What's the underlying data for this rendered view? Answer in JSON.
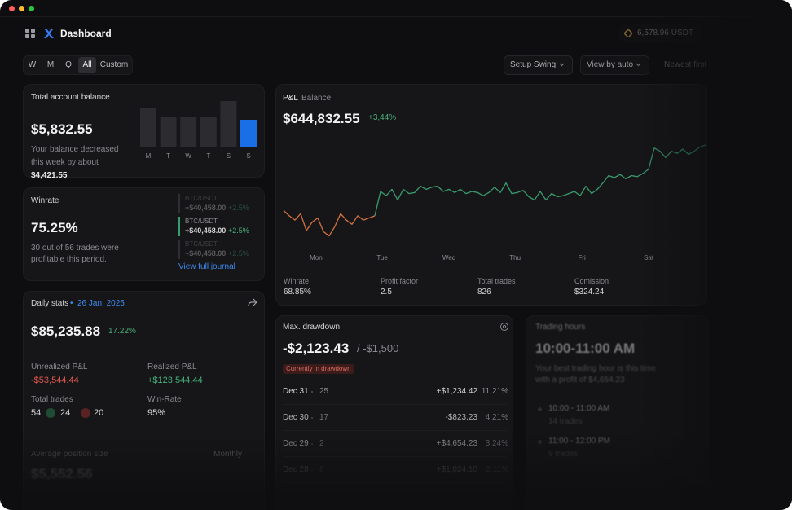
{
  "window": {
    "title": "Dashboard",
    "balance": "6,578.96 USDT"
  },
  "filters": {
    "periods": [
      "W",
      "M",
      "Q",
      "All",
      "Custom"
    ],
    "active": "All",
    "setup": "Setup Swing",
    "view": "View by auto",
    "sort": "Newest first"
  },
  "balance_card": {
    "title": "Total account balance",
    "amount": "$5,832.55",
    "note": "Your balance decreased this week by about",
    "change": "$4,421.55"
  },
  "winrate_card": {
    "title": "Winrate",
    "value": "75.25%",
    "note": "30 out of 56 trades were profitable this period.",
    "trades": [
      {
        "pair": "BTC/USDT",
        "pnl": "+$40,458.00",
        "pct": "+2.5%"
      },
      {
        "pair": "BTC/USDT",
        "pnl": "+$40,458.00",
        "pct": "+2.5%"
      },
      {
        "pair": "BTC/USDT",
        "pnl": "+$40,458.00",
        "pct": "+2.5%"
      }
    ],
    "link": "View full journal"
  },
  "daily": {
    "title": "Daily stats",
    "dot": "•",
    "date": "26 Jan, 2025",
    "amount": "$85,235.88",
    "change": "17.22%",
    "unrealized_label": "Unrealized P&L",
    "unrealized": "-$53,544.44",
    "realized_label": "Realized P&L",
    "realized": "+$123,544.44",
    "trades_label": "Total trades",
    "trades": "54",
    "wins": "24",
    "losses": "20",
    "winrate_label": "Win-Rate",
    "winrate": "95%",
    "avg_label": "Average position size",
    "avg_period": "Monthly",
    "avg_value": "$5,552.56"
  },
  "pnl_stats": [
    {
      "label": "Winrate",
      "value": "68.85%"
    },
    {
      "label": "Profit factor",
      "value": "2.5"
    },
    {
      "label": "Total trades",
      "value": "826"
    },
    {
      "label": "Comission",
      "value": "$324.24"
    }
  ],
  "drawdown": {
    "title": "Max. drawdown",
    "value": "-$2,123.43",
    "limit": "/ -$1,500",
    "badge": "Currently in drawdown",
    "rows": [
      [
        "Dec 31",
        "25",
        "+$1,234.42",
        "11.21%"
      ],
      [
        "Dec 30",
        "17",
        "-$823.23",
        "4.21%"
      ],
      [
        "Dec 29",
        "2",
        "+$4,654.23",
        "3.24%"
      ],
      [
        "Dec 28",
        "6",
        "+$1,024.10",
        "2.11%"
      ]
    ]
  },
  "hours": {
    "title": "Trading hours",
    "value": "10:00-11:00 AM",
    "note": "Your best trading hour is this time with a profit of $4,654.23",
    "slots": [
      {
        "time": "10:00 - 11:00 AM",
        "trades": "14 trades"
      },
      {
        "time": "11:00 - 12:00 PM",
        "trades": "9 trades"
      }
    ]
  },
  "chart_data": [
    {
      "type": "bar",
      "categories": [
        "M",
        "T",
        "W",
        "T",
        "S",
        "S"
      ],
      "values": [
        48,
        37,
        37,
        37,
        57,
        34
      ],
      "colors": [
        "#2c2c30",
        "#2c2c30",
        "#2c2c30",
        "#2c2c30",
        "#2c2c30",
        "#1a6ee6"
      ]
    },
    {
      "type": "line",
      "tabs": [
        "P&L",
        "Balance"
      ],
      "value": "$644,832.55",
      "change": "+3,44%",
      "xlim": [
        0,
        74
      ],
      "ylim": [
        0,
        100
      ],
      "xticks": [
        {
          "value": 5.7,
          "label": "Mon"
        },
        {
          "value": 17.3,
          "label": "Tue"
        },
        {
          "value": 29,
          "label": "Wed"
        },
        {
          "value": 40.6,
          "label": "Thu"
        },
        {
          "value": 52.3,
          "label": "Fri"
        },
        {
          "value": 64,
          "label": "Sat"
        }
      ],
      "series": [
        {
          "color": "#d4703f",
          "values": [
            32,
            27,
            23,
            29,
            13,
            21,
            25,
            12,
            8,
            17,
            29,
            23,
            19,
            27,
            23,
            25,
            27,
            null,
            null,
            null,
            null,
            null,
            null,
            null,
            null,
            null,
            null,
            null,
            null,
            null,
            null,
            null,
            null,
            null,
            null,
            null,
            null,
            null,
            null,
            null,
            null,
            null,
            null,
            null,
            null,
            null,
            null,
            null,
            null,
            null,
            null,
            null,
            null,
            null,
            null,
            null,
            null,
            null,
            null,
            null,
            null,
            null,
            null,
            null,
            null,
            null,
            null,
            null,
            null,
            null,
            null,
            null,
            null,
            null,
            null
          ]
        },
        {
          "color": "#3a9b6d",
          "values": [
            null,
            null,
            null,
            null,
            null,
            null,
            null,
            null,
            null,
            null,
            null,
            null,
            null,
            null,
            null,
            null,
            27,
            50,
            46,
            52,
            42,
            52,
            48,
            49,
            55,
            52,
            54,
            55,
            50,
            52,
            49,
            52,
            48,
            50,
            49,
            46,
            49,
            54,
            49,
            58,
            48,
            49,
            51,
            45,
            42,
            50,
            42,
            48,
            45,
            46,
            48,
            50,
            46,
            55,
            48,
            52,
            58,
            65,
            63,
            66,
            62,
            65,
            64,
            67,
            71,
            91,
            88,
            82,
            88,
            86,
            90,
            85,
            88,
            92,
            94
          ]
        }
      ]
    }
  ]
}
